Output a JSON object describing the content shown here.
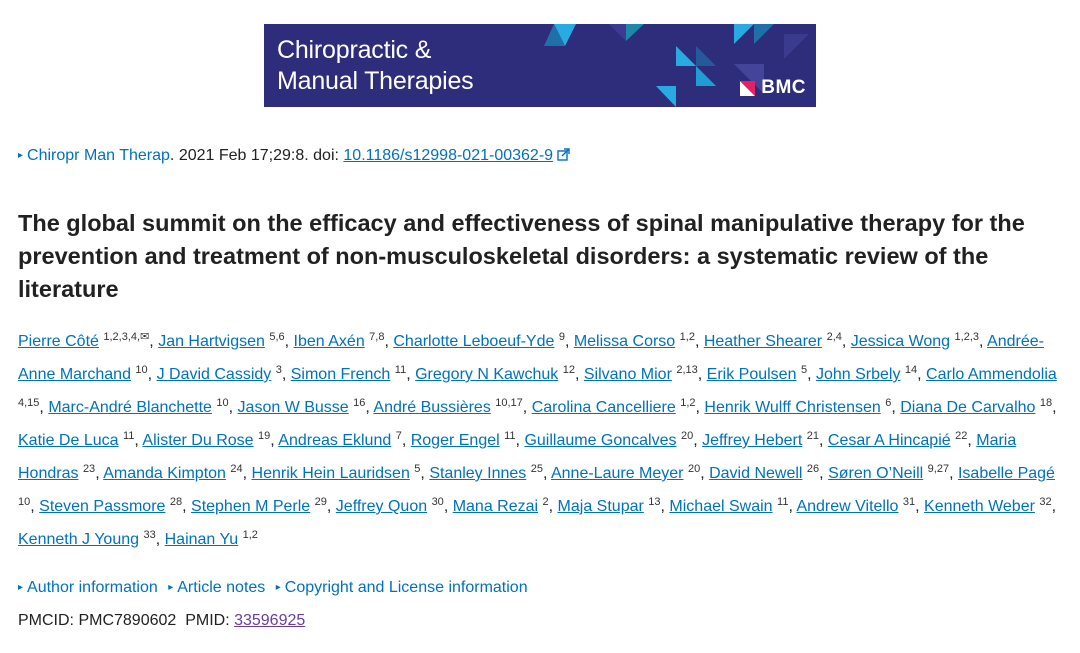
{
  "banner": {
    "journal_line1": "Chiropractic &",
    "journal_line2": "Manual Therapies",
    "publisher": "BMC",
    "bg_color": "#2e2d7c",
    "accent_cyan": "#29abe2",
    "accent_teal": "#1e88a8"
  },
  "citation": {
    "journal": "Chiropr Man Therap",
    "rest": ". 2021 Feb 17;29:8. doi: ",
    "doi": "10.1186/s12998-021-00362-9"
  },
  "title": "The global summit on the efficacy and effectiveness of spinal manipulative therapy for the prevention and treatment of non-musculoskeletal disorders: a systematic review of the literature",
  "authors": [
    {
      "name": "Pierre Côté",
      "sup": "1,2,3,4,✉"
    },
    {
      "name": "Jan Hartvigsen",
      "sup": "5,6"
    },
    {
      "name": "Iben Axén",
      "sup": "7,8"
    },
    {
      "name": "Charlotte Leboeuf-Yde",
      "sup": "9"
    },
    {
      "name": "Melissa Corso",
      "sup": "1,2"
    },
    {
      "name": "Heather Shearer",
      "sup": "2,4"
    },
    {
      "name": "Jessica Wong",
      "sup": "1,2,3"
    },
    {
      "name": "Andrée-Anne Marchand",
      "sup": "10"
    },
    {
      "name": "J David Cassidy",
      "sup": "3"
    },
    {
      "name": "Simon French",
      "sup": "11"
    },
    {
      "name": "Gregory N Kawchuk",
      "sup": "12"
    },
    {
      "name": "Silvano Mior",
      "sup": "2,13"
    },
    {
      "name": "Erik Poulsen",
      "sup": "5"
    },
    {
      "name": "John Srbely",
      "sup": "14"
    },
    {
      "name": "Carlo Ammendolia",
      "sup": "4,15"
    },
    {
      "name": "Marc-André Blanchette",
      "sup": "10"
    },
    {
      "name": "Jason W Busse",
      "sup": "16"
    },
    {
      "name": "André Bussières",
      "sup": "10,17"
    },
    {
      "name": "Carolina Cancelliere",
      "sup": "1,2"
    },
    {
      "name": "Henrik Wulff Christensen",
      "sup": "6"
    },
    {
      "name": "Diana De Carvalho",
      "sup": "18"
    },
    {
      "name": "Katie De Luca",
      "sup": "11"
    },
    {
      "name": "Alister Du Rose",
      "sup": "19"
    },
    {
      "name": "Andreas Eklund",
      "sup": "7"
    },
    {
      "name": "Roger Engel",
      "sup": "11"
    },
    {
      "name": "Guillaume Goncalves",
      "sup": "20"
    },
    {
      "name": "Jeffrey Hebert",
      "sup": "21"
    },
    {
      "name": "Cesar A Hincapié",
      "sup": "22"
    },
    {
      "name": "Maria Hondras",
      "sup": "23"
    },
    {
      "name": "Amanda Kimpton",
      "sup": "24"
    },
    {
      "name": "Henrik Hein Lauridsen",
      "sup": "5"
    },
    {
      "name": "Stanley Innes",
      "sup": "25"
    },
    {
      "name": "Anne-Laure Meyer",
      "sup": "20"
    },
    {
      "name": "David Newell",
      "sup": "26"
    },
    {
      "name": "Søren O’Neill",
      "sup": "9,27"
    },
    {
      "name": "Isabelle Pagé",
      "sup": "10"
    },
    {
      "name": "Steven Passmore",
      "sup": "28"
    },
    {
      "name": "Stephen M Perle",
      "sup": "29"
    },
    {
      "name": "Jeffrey Quon",
      "sup": "30"
    },
    {
      "name": "Mana Rezai",
      "sup": "2"
    },
    {
      "name": "Maja Stupar",
      "sup": "13"
    },
    {
      "name": "Michael Swain",
      "sup": "11"
    },
    {
      "name": "Andrew Vitello",
      "sup": "31"
    },
    {
      "name": "Kenneth Weber",
      "sup": "32"
    },
    {
      "name": "Kenneth J Young",
      "sup": "33"
    },
    {
      "name": "Hainan Yu",
      "sup": "1,2"
    }
  ],
  "sections": {
    "author_info": "Author information",
    "article_notes": "Article notes",
    "copyright": "Copyright and License information"
  },
  "ids": {
    "pmcid_label": "PMCID: ",
    "pmcid": "PMC7890602",
    "pmid_label": "PMID: ",
    "pmid": "33596925"
  },
  "icons": {
    "section_toggle": "triangle-right-icon",
    "external_link": "external-link-icon"
  }
}
